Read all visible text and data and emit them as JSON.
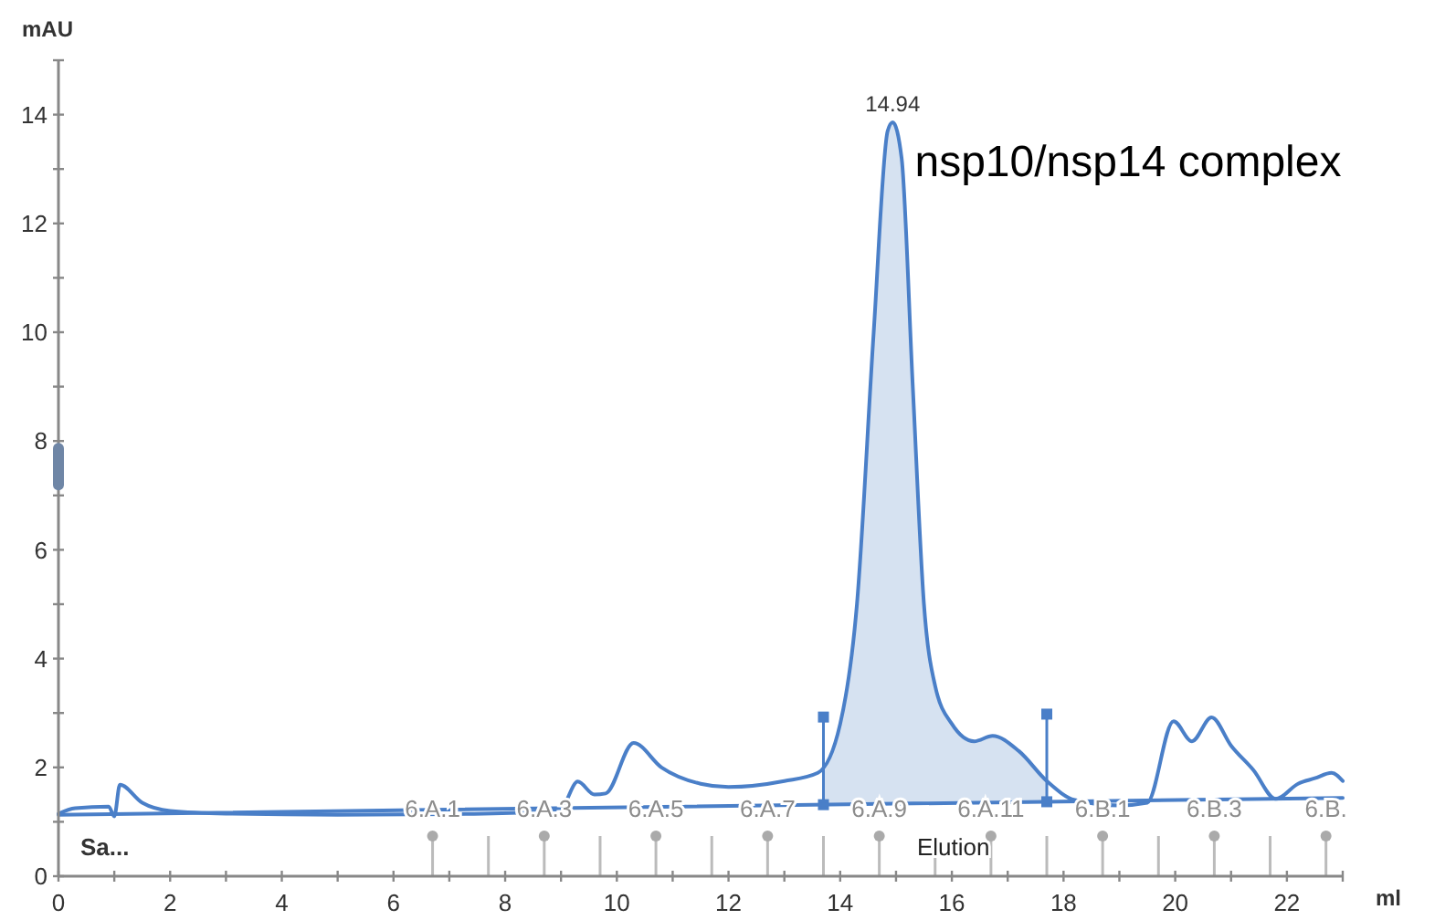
{
  "chart_data": {
    "type": "line",
    "xlabel": "ml",
    "ylabel": "mAU",
    "xlim": [
      0,
      23
    ],
    "ylim": [
      0,
      15
    ],
    "xticks": [
      0,
      {
        "value": 1,
        "label": null
      },
      2,
      {
        "value": 3,
        "label": null
      },
      4,
      {
        "value": 5,
        "label": null
      },
      6,
      {
        "value": 7,
        "label": null
      },
      8,
      {
        "value": 9,
        "label": null
      },
      10,
      {
        "value": 11,
        "label": null
      },
      12,
      {
        "value": 13,
        "label": null
      },
      14,
      {
        "value": 15,
        "label": null
      },
      16,
      {
        "value": 17,
        "label": null
      },
      18,
      {
        "value": 19,
        "label": null
      },
      20,
      {
        "value": 21,
        "label": null
      },
      22,
      {
        "value": 23,
        "label": null
      }
    ],
    "yticks": [
      0,
      {
        "value": 1,
        "label": null
      },
      2,
      {
        "value": 3,
        "label": null
      },
      4,
      {
        "value": 5,
        "label": null
      },
      6,
      {
        "value": 7,
        "label": null
      },
      8,
      {
        "value": 9,
        "label": null
      },
      10,
      {
        "value": 11,
        "label": null
      },
      12,
      {
        "value": 13,
        "label": null
      },
      14,
      {
        "value": 15,
        "label": null
      }
    ],
    "series": [
      {
        "type": "area",
        "color": "#d6e2f1",
        "x": [
          13.7,
          14,
          14.3,
          14.6,
          14.85,
          14.94,
          15.1,
          15.3,
          15.5,
          15.7,
          16,
          16.4,
          16.73,
          17.2,
          17.7
        ],
        "values": [
          1.9,
          2.8,
          5,
          10,
          13.7,
          13.86,
          13.2,
          9,
          5,
          3.5,
          2.8,
          2.48,
          2.58,
          2.3,
          1.75
        ]
      },
      {
        "color": "#4a7fc8",
        "x": [
          0,
          0.3,
          0.9,
          1.0,
          1.1,
          1.5,
          2,
          3,
          5,
          7,
          8.5,
          9.0,
          9.3,
          9.6,
          9.8,
          10.3,
          10.8,
          11.5,
          12,
          13,
          13.6,
          14,
          14.3,
          14.6,
          14.85,
          14.94,
          15.1,
          15.3,
          15.5,
          15.7,
          16,
          16.4,
          16.73,
          17.2,
          17.7,
          18.2,
          19,
          19.5,
          19.97,
          20.3,
          20.65,
          21.0,
          21.4,
          21.8,
          22.2,
          22.5,
          22.8,
          23
        ],
        "values": [
          1.15,
          1.25,
          1.28,
          1.1,
          1.68,
          1.35,
          1.2,
          1.15,
          1.13,
          1.14,
          1.18,
          1.25,
          1.74,
          1.5,
          1.52,
          2.45,
          2.0,
          1.7,
          1.64,
          1.75,
          1.9,
          2.8,
          5,
          10,
          13.7,
          13.86,
          13.2,
          9,
          5,
          3.5,
          2.8,
          2.48,
          2.58,
          2.3,
          1.75,
          1.4,
          1.3,
          1.35,
          2.85,
          2.48,
          2.92,
          2.4,
          1.95,
          1.42,
          1.7,
          1.8,
          1.9,
          1.75
        ]
      },
      {
        "color": "#4a7fc8",
        "x": [
          0,
          23
        ],
        "values": [
          1.13,
          1.44
        ]
      }
    ],
    "annotations": [
      {
        "text": "14.94",
        "x": 14.94,
        "y": 13.86
      },
      "nsp10/nsp14 complex",
      "Sa...",
      "Elution"
    ],
    "ref_lines": [
      {
        "axis": "x",
        "value": 6.7,
        "label": "6.A.1"
      },
      {
        "axis": "x",
        "value": 8.7,
        "label": "6.A.3"
      },
      {
        "axis": "x",
        "value": 10.7,
        "label": "6.A.5"
      },
      {
        "axis": "x",
        "value": 12.7,
        "label": "6.A.7"
      },
      {
        "axis": "x",
        "value": 14.7,
        "label": "6.A.9"
      },
      {
        "axis": "x",
        "value": 16.7,
        "label": "6.A.11"
      },
      {
        "axis": "x",
        "value": 18.7,
        "label": "6.B.1"
      },
      {
        "axis": "x",
        "value": 20.7,
        "label": "6.B.3"
      },
      {
        "axis": "x",
        "value": 22.7,
        "label": "6.B."
      }
    ]
  }
}
